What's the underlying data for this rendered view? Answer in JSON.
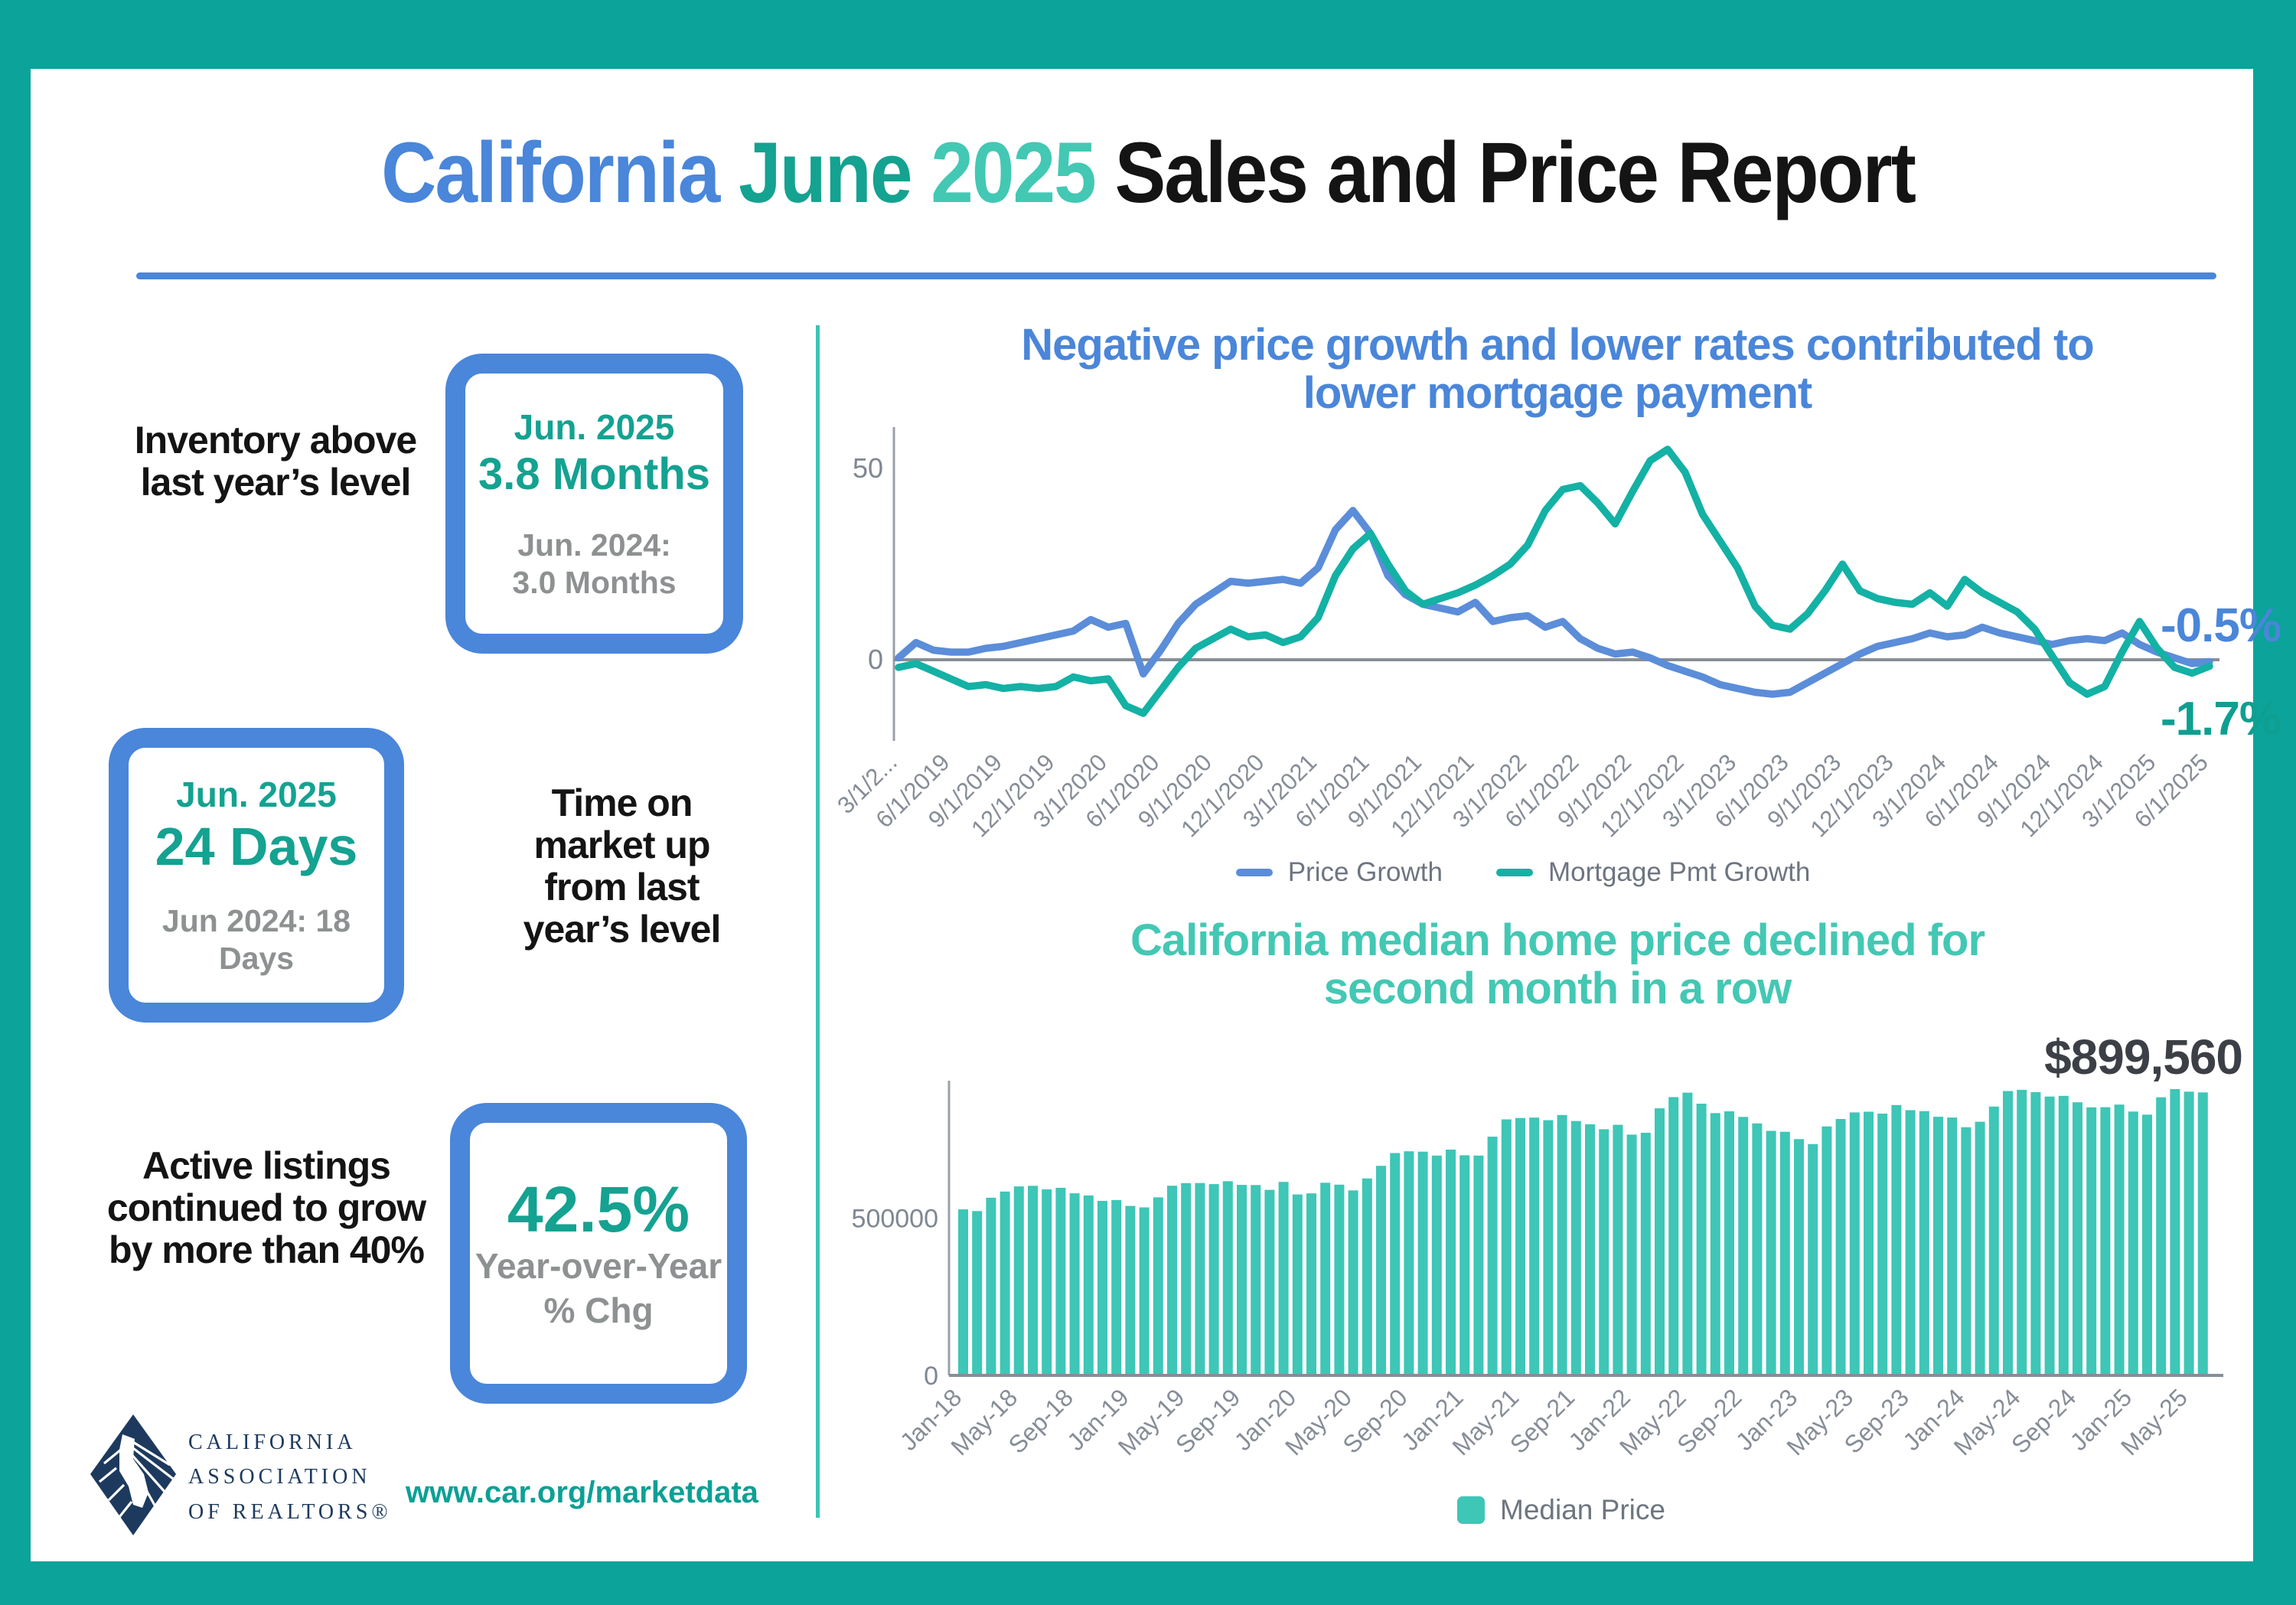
{
  "header": {
    "title_part1": "California",
    "title_part2": "June",
    "title_part3": "2025",
    "title_part4": "Sales and Price Report"
  },
  "stats": [
    {
      "label": "Inventory above last year’s level",
      "box": {
        "period": "Jun. 2025",
        "value": "3.8 Months",
        "compare1": "Jun. 2024:",
        "compare2": "3.0 Months"
      }
    },
    {
      "label": "Time on market up from last year’s level",
      "box": {
        "period": "Jun. 2025",
        "value": "24 Days",
        "compare1": "Jun 2024: 18",
        "compare2": "Days"
      }
    },
    {
      "label": "Active listings continued to grow by more than 40%",
      "box": {
        "value": "42.5%",
        "sub1": "Year-over-Year",
        "sub2": "% Chg"
      }
    }
  ],
  "footer": {
    "logo_lines": [
      "CALIFORNIA",
      "ASSOCIATION",
      "OF REALTORS®"
    ],
    "url": "www.car.org/marketdata"
  },
  "colors": {
    "frame_teal": "#0ba39a",
    "blue": "#4a86d9",
    "teal_dark": "#14a291",
    "teal_light": "#43c8b4",
    "bar_teal": "#3ec6b6",
    "line_blue": "#5b8dd9",
    "line_teal": "#14b1a5",
    "axis_gray": "#7f8792",
    "legend_gray": "#6d7580",
    "annotation_teal": "#0f9f91",
    "divider_teal": "#3cc5b4",
    "url_teal": "#0ca095",
    "logo_navy": "#1d3a5e"
  },
  "chart_data": [
    {
      "type": "line",
      "title": "Negative price growth and lower rates contributed to lower mortgage payment",
      "title_lines": [
        "Negative price growth and lower rates contributed to",
        "lower mortgage payment"
      ],
      "x_start": "3/1/2019",
      "frequency": "monthly",
      "points_per_tick": 3,
      "x_tick_labels": [
        "3/1/2...",
        "6/1/2019",
        "9/1/2019",
        "12/1/2019",
        "3/1/2020",
        "6/1/2020",
        "9/1/2020",
        "12/1/2020",
        "3/1/2021",
        "6/1/2021",
        "9/1/2021",
        "12/1/2021",
        "3/1/2022",
        "6/1/2022",
        "9/1/2022",
        "12/1/2022",
        "3/1/2023",
        "6/1/2023",
        "9/1/2023",
        "12/1/2023",
        "3/1/2024",
        "6/1/2024",
        "9/1/2024",
        "12/1/2024",
        "3/1/2025",
        "6/1/2025"
      ],
      "yticks": [
        0,
        50
      ],
      "ylim": [
        -17,
        58
      ],
      "grid": false,
      "legend_position": "bottom",
      "series": [
        {
          "name": "Price Growth",
          "color": "#5b8dd9",
          "values": [
            0.5,
            4.5,
            2.5,
            2.0,
            2.0,
            3.0,
            3.5,
            4.5,
            5.5,
            6.5,
            7.5,
            10.5,
            8.5,
            9.5,
            -3.7,
            2.5,
            9.5,
            14.5,
            17.5,
            20.5,
            20.0,
            20.5,
            21.0,
            20.0,
            24.0,
            34.0,
            39.0,
            33.0,
            22.0,
            17.0,
            14.5,
            13.5,
            12.5,
            15.0,
            10.0,
            11.0,
            11.5,
            8.5,
            10.0,
            5.5,
            3.0,
            1.5,
            2.0,
            0.5,
            -1.5,
            -3.0,
            -4.5,
            -6.5,
            -7.5,
            -8.5,
            -9.0,
            -8.5,
            -6.0,
            -3.5,
            -1.0,
            1.5,
            3.5,
            4.5,
            5.5,
            7.0,
            6.0,
            6.5,
            8.5,
            7.0,
            6.0,
            5.0,
            4.0,
            5.0,
            5.5,
            5.0,
            7.0,
            4.0,
            2.0,
            0.5,
            -1.0,
            -0.5
          ]
        },
        {
          "name": "Mortgage Pmt Growth",
          "color": "#14b1a5",
          "values": [
            -2.0,
            -1.0,
            -3.0,
            -5.0,
            -7.0,
            -6.5,
            -7.5,
            -7.0,
            -7.5,
            -7.0,
            -4.5,
            -5.5,
            -5.0,
            -12.0,
            -14.0,
            -8.0,
            -2.0,
            3.0,
            5.5,
            8.0,
            6.0,
            6.5,
            4.5,
            6.0,
            11.0,
            22.0,
            29.0,
            33.0,
            25.0,
            18.0,
            14.5,
            16.0,
            17.5,
            19.5,
            22.0,
            25.0,
            30.0,
            39.0,
            44.5,
            45.5,
            41.0,
            35.5,
            44.0,
            52.0,
            55.0,
            49.0,
            38.0,
            31.0,
            24.0,
            14.0,
            9.0,
            8.0,
            12.0,
            18.0,
            25.0,
            18.0,
            16.0,
            15.0,
            14.5,
            17.5,
            14.0,
            21.0,
            17.5,
            15.0,
            12.5,
            8.0,
            1.0,
            -6.0,
            -9.0,
            -7.0,
            2.0,
            10.0,
            3.0,
            -2.0,
            -3.5,
            -1.7
          ]
        }
      ],
      "end_labels": [
        {
          "text": "-0.5%",
          "series": "Price Growth",
          "color": "#4a86d9"
        },
        {
          "text": "-1.7%",
          "series": "Mortgage Pmt Growth",
          "color": "#0f9f91"
        }
      ]
    },
    {
      "type": "bar",
      "title": "California median home price declined for second month in a row",
      "title_lines": [
        "California median home price declined for",
        "second month in a row"
      ],
      "annotation": "$899,560",
      "x_start": "Jan-18",
      "frequency": "monthly",
      "points_per_tick": 4,
      "x_tick_labels": [
        "Jan-18",
        "May-18",
        "Sep-18",
        "Jan-19",
        "May-19",
        "Sep-19",
        "Jan-20",
        "May-20",
        "Sep-20",
        "Jan-21",
        "May-21",
        "Sep-21",
        "Jan-22",
        "May-22",
        "Sep-22",
        "Jan-23",
        "May-23",
        "Sep-23",
        "Jan-24",
        "May-24",
        "Sep-24",
        "Jan-25",
        "May-25"
      ],
      "yticks": [
        0,
        500000
      ],
      "ylim": [
        0,
        960000
      ],
      "bar_color": "#3ec6b6",
      "legend": {
        "label": "Median Price",
        "color": "#3ec6b6"
      },
      "values": [
        527800,
        522400,
        564800,
        584500,
        600900,
        602800,
        591500,
        596400,
        578900,
        572000,
        554800,
        557600,
        538700,
        534100,
        565900,
        602900,
        611200,
        611400,
        608000,
        617400,
        605700,
        605300,
        589800,
        615100,
        575200,
        578700,
        612400,
        606400,
        588100,
        626200,
        666300,
        706900,
        712400,
        711300,
        699000,
        717900,
        699900,
        699000,
        759000,
        814000,
        818300,
        819600,
        811200,
        827900,
        808900,
        798400,
        782500,
        796600,
        765600,
        771300,
        849100,
        884900,
        899000,
        863800,
        833900,
        839500,
        821700,
        801200,
        777500,
        774600,
        751300,
        735500,
        791500,
        815300,
        836100,
        838300,
        832300,
        859500,
        843300,
        840300,
        822200,
        819700,
        788900,
        806500,
        854500,
        904000,
        908000,
        900700,
        886600,
        888700,
        868200,
        852300,
        852600,
        861000,
        838900,
        829100,
        884100,
        910100,
        902000,
        899560
      ]
    }
  ]
}
